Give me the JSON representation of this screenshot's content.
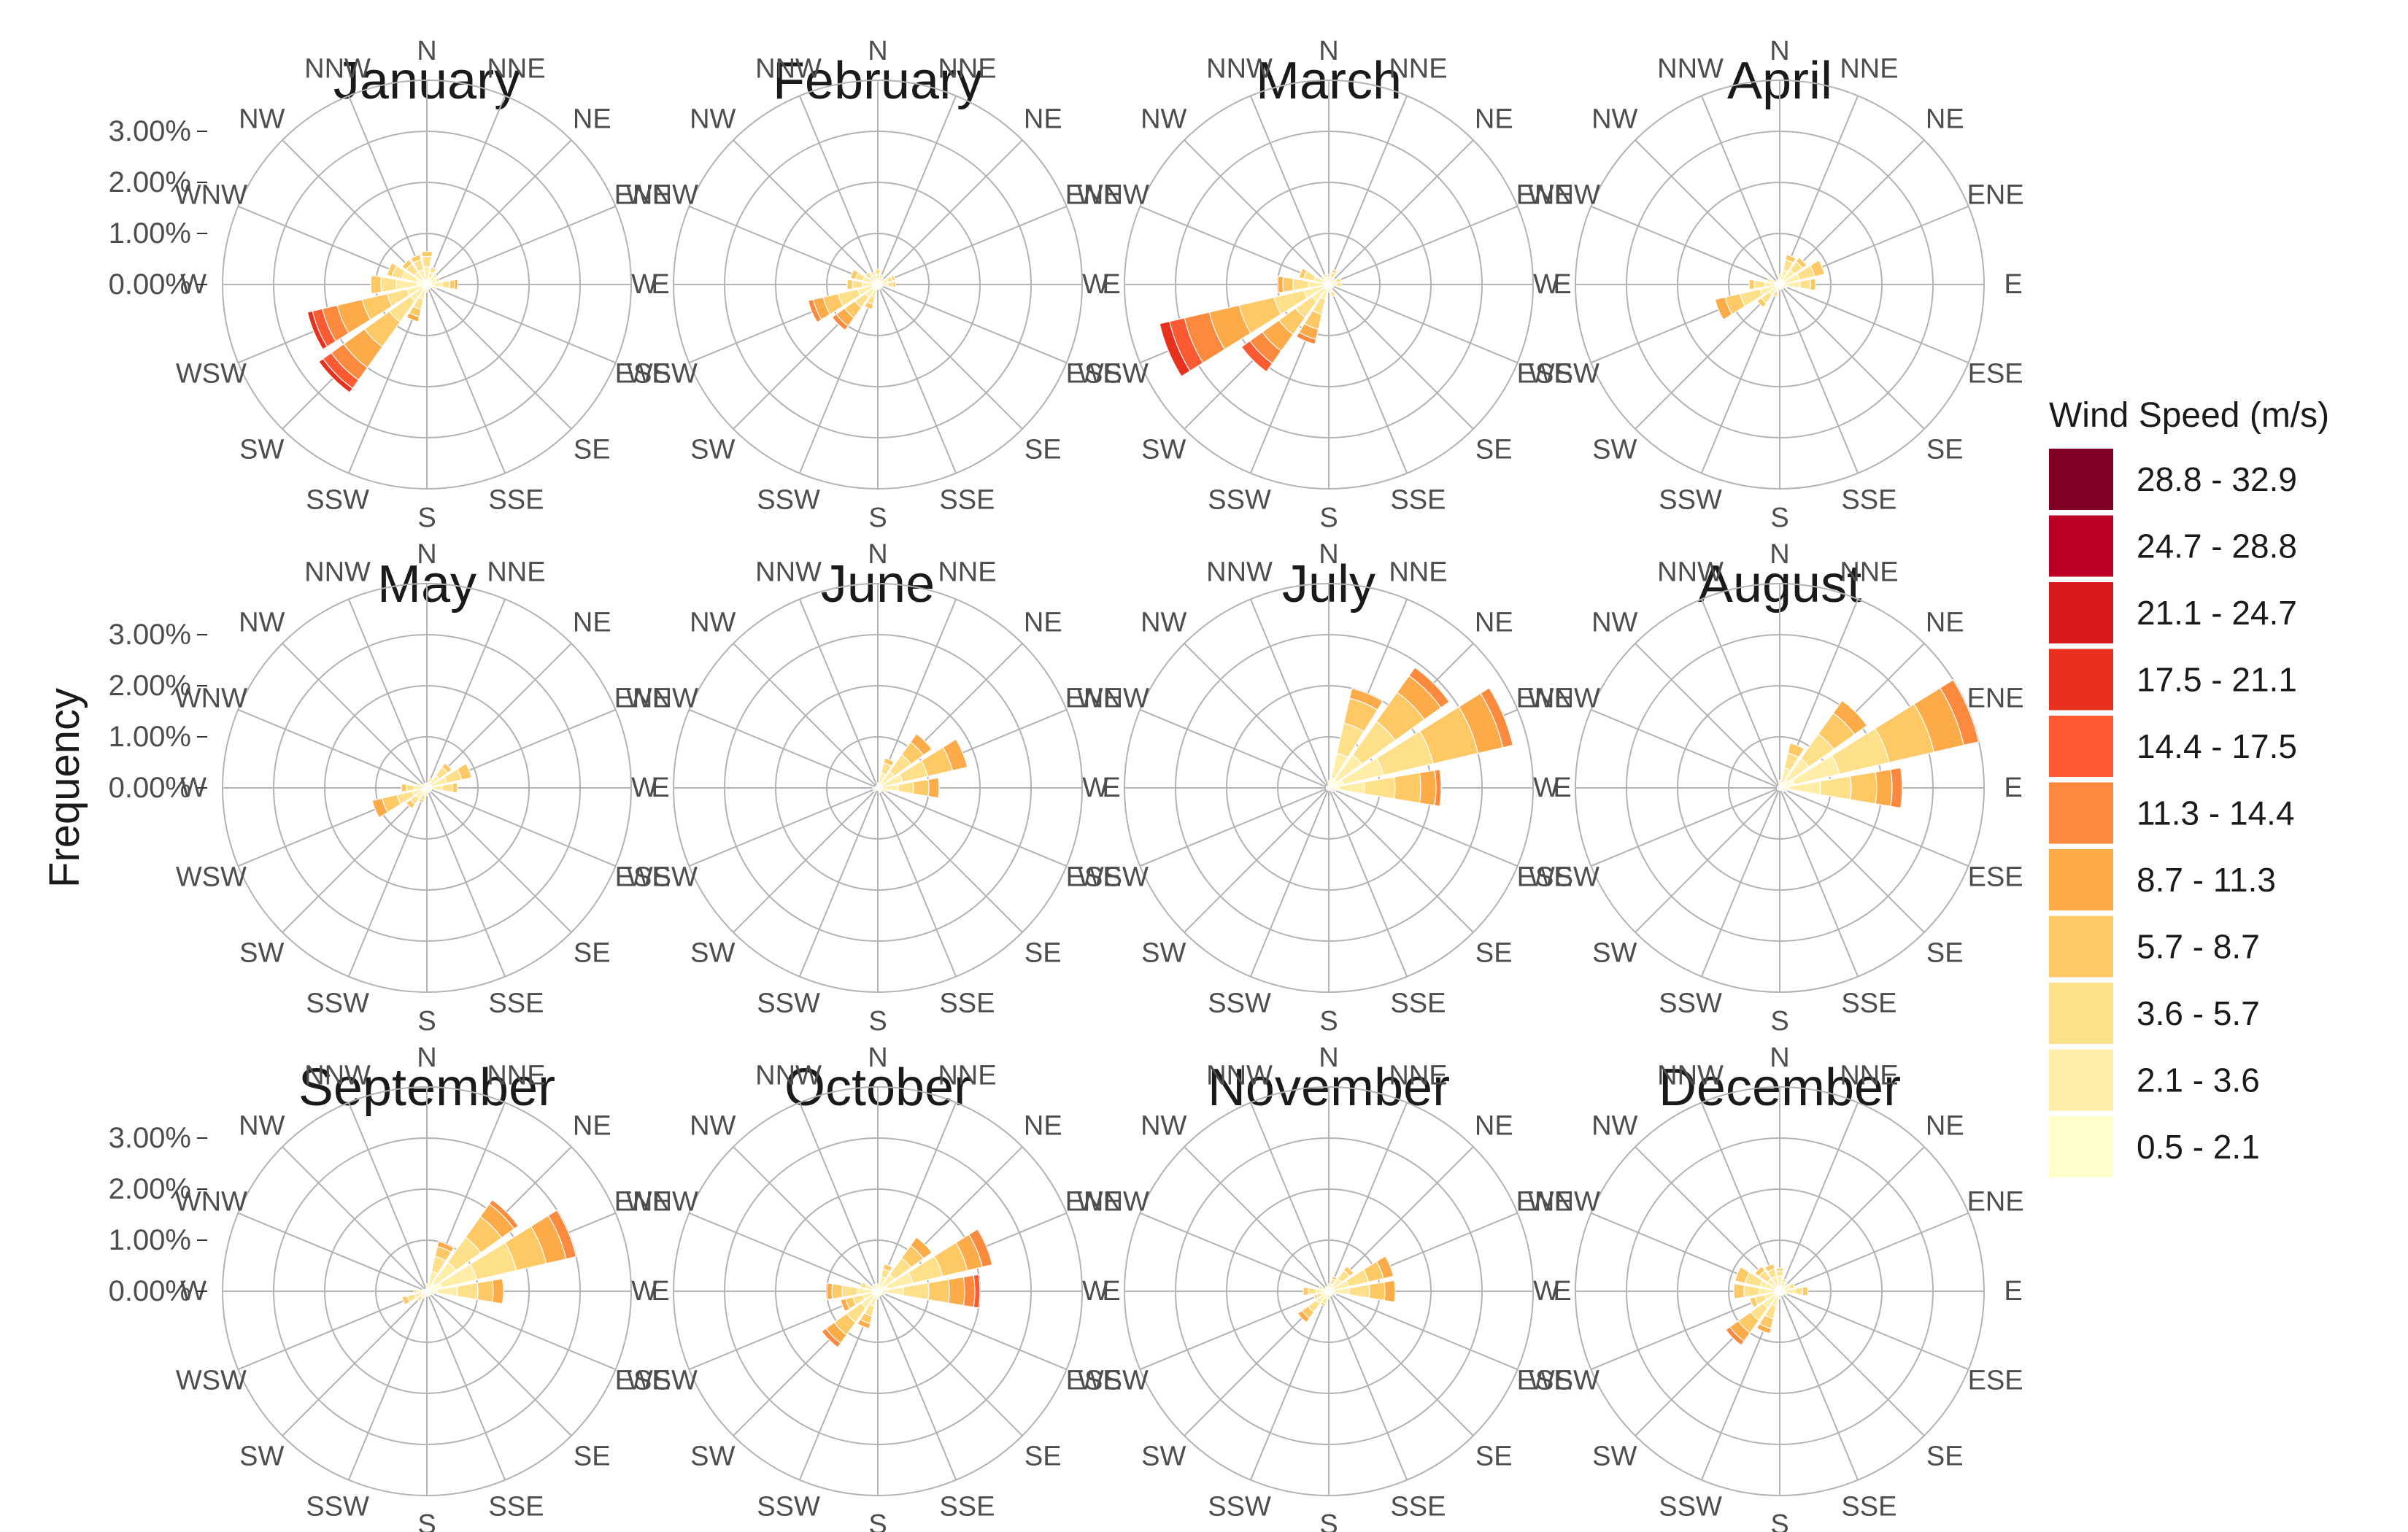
{
  "chart_data": {
    "type": "wind-rose",
    "ylabel": "Frequency",
    "r_ticks": [
      "0.00%",
      "1.00%",
      "2.00%",
      "3.00%"
    ],
    "r_tick_values": [
      0,
      1,
      2,
      3
    ],
    "r_max": 4,
    "grid": true,
    "directions": [
      "N",
      "NNE",
      "NE",
      "ENE",
      "E",
      "ESE",
      "SE",
      "SSE",
      "S",
      "SSW",
      "SW",
      "WSW",
      "W",
      "WNW",
      "NW",
      "NNW"
    ],
    "legend": {
      "title": "Wind Speed (m/s)",
      "position": "right",
      "bins": [
        {
          "label": "28.8 - 32.9",
          "color": "#800026"
        },
        {
          "label": "24.7 - 28.8",
          "color": "#BD0026"
        },
        {
          "label": "21.1 - 24.7",
          "color": "#D7191C"
        },
        {
          "label": "17.5 - 21.1",
          "color": "#E7301E"
        },
        {
          "label": "14.4 - 17.5",
          "color": "#FC5A32"
        },
        {
          "label": "11.3 - 14.4",
          "color": "#FC8A3E"
        },
        {
          "label": "8.7 - 11.3",
          "color": "#FDAA49"
        },
        {
          "label": "5.7 - 8.7",
          "color": "#FEC865"
        },
        {
          "label": "3.6 - 5.7",
          "color": "#FEE08B"
        },
        {
          "label": "2.1 - 3.6",
          "color": "#FFEDA8"
        },
        {
          "label": "0.5 - 2.1",
          "color": "#FFFFCC"
        }
      ]
    },
    "bin_order_note": "each sector value is an array of cumulative-contribution percentages from lowest speed bin (0.5 - 2.1) upward",
    "panels": [
      {
        "title": "January",
        "sectors": {
          "N": [
            0.1,
            0.25,
            0.2,
            0.1
          ],
          "NNE": [
            0.1,
            0.15,
            0.1
          ],
          "NE": [
            0.1,
            0.1,
            0.05
          ],
          "ENE": [
            0.1,
            0.1,
            0.05
          ],
          "E": [
            0.1,
            0.2,
            0.15,
            0.1,
            0.05
          ],
          "ESE": [
            0.1,
            0.1
          ],
          "SE": [
            0.05,
            0.05
          ],
          "SSE": [
            0.05,
            0.05
          ],
          "S": [
            0.05,
            0.1
          ],
          "SSW": [
            0.1,
            0.2,
            0.2,
            0.15,
            0.1
          ],
          "SW": [
            0.1,
            0.3,
            0.5,
            0.6,
            0.5,
            0.3,
            0.2,
            0.1
          ],
          "WSW": [
            0.1,
            0.3,
            0.4,
            0.5,
            0.5,
            0.3,
            0.2,
            0.1
          ],
          "W": [
            0.2,
            0.4,
            0.3,
            0.2
          ],
          "WNW": [
            0.2,
            0.3,
            0.2,
            0.1
          ],
          "NW": [
            0.1,
            0.2,
            0.2,
            0.1
          ],
          "NNW": [
            0.1,
            0.2,
            0.2,
            0.1
          ]
        }
      },
      {
        "title": "February",
        "sectors": {
          "N": [
            0.1,
            0.1,
            0.1
          ],
          "NNE": [
            0.05,
            0.1,
            0.05
          ],
          "NE": [
            0.05,
            0.05,
            0.05
          ],
          "ENE": [
            0.1,
            0.1,
            0.1,
            0.05
          ],
          "E": [
            0.1,
            0.1,
            0.1,
            0.05
          ],
          "ESE": [
            0.05,
            0.05
          ],
          "SE": [
            0.05,
            0.05
          ],
          "SSE": [
            0.05,
            0.05
          ],
          "S": [
            0.05,
            0.05
          ],
          "SSW": [
            0.1,
            0.15,
            0.15,
            0.1
          ],
          "SW": [
            0.1,
            0.2,
            0.25,
            0.25,
            0.2,
            0.1
          ],
          "WSW": [
            0.1,
            0.3,
            0.4,
            0.3,
            0.2,
            0.1
          ],
          "W": [
            0.1,
            0.2,
            0.2,
            0.1
          ],
          "WNW": [
            0.1,
            0.2,
            0.15,
            0.1
          ],
          "NW": [
            0.1,
            0.1,
            0.1
          ],
          "NNW": [
            0.1,
            0.1,
            0.05
          ]
        }
      },
      {
        "title": "March",
        "sectors": {
          "N": [
            0.05,
            0.1,
            0.05
          ],
          "NNE": [
            0.05,
            0.1,
            0.1,
            0.05
          ],
          "NE": [
            0.05,
            0.1
          ],
          "ENE": [
            0.05,
            0.1,
            0.1
          ],
          "E": [
            0.05,
            0.1,
            0.1
          ],
          "ESE": [
            0.05,
            0.05
          ],
          "SE": [
            0.05,
            0.05
          ],
          "SSE": [
            0.05,
            0.1,
            0.1
          ],
          "S": [
            0.05,
            0.1
          ],
          "SSW": [
            0.1,
            0.2,
            0.3,
            0.3,
            0.2,
            0.1
          ],
          "SW": [
            0.1,
            0.3,
            0.4,
            0.4,
            0.4,
            0.3,
            0.2
          ],
          "WSW": [
            0.1,
            0.4,
            0.6,
            0.7,
            0.6,
            0.5,
            0.3,
            0.2
          ],
          "W": [
            0.1,
            0.3,
            0.3,
            0.2,
            0.1
          ],
          "WNW": [
            0.1,
            0.2,
            0.2,
            0.1
          ],
          "NW": [
            0.05,
            0.1,
            0.05
          ],
          "NNW": [
            0.05,
            0.1,
            0.05
          ]
        }
      },
      {
        "title": "April",
        "sectors": {
          "N": [
            0.05,
            0.1,
            0.05
          ],
          "NNE": [
            0.1,
            0.2,
            0.2,
            0.1
          ],
          "NE": [
            0.1,
            0.25,
            0.2,
            0.1
          ],
          "ENE": [
            0.1,
            0.3,
            0.3,
            0.2
          ],
          "E": [
            0.1,
            0.3,
            0.2,
            0.1
          ],
          "ESE": [
            0.05,
            0.1
          ],
          "SE": [
            0.05,
            0.05
          ],
          "SSE": [
            0.05,
            0.05
          ],
          "S": [
            0.05,
            0.05
          ],
          "SSW": [
            0.05,
            0.1,
            0.1
          ],
          "SW": [
            0.1,
            0.15,
            0.2,
            0.1
          ],
          "WSW": [
            0.1,
            0.3,
            0.4,
            0.3,
            0.2
          ],
          "W": [
            0.1,
            0.2,
            0.2,
            0.1
          ],
          "WNW": [
            0.1,
            0.1,
            0.05
          ],
          "NW": [
            0.05,
            0.05
          ],
          "NNW": [
            0.05,
            0.05
          ]
        }
      },
      {
        "title": "May",
        "sectors": {
          "N": [
            0.05,
            0.05
          ],
          "NNE": [
            0.05,
            0.1,
            0.05
          ],
          "NE": [
            0.1,
            0.2,
            0.2,
            0.1
          ],
          "ENE": [
            0.1,
            0.3,
            0.3,
            0.2
          ],
          "E": [
            0.1,
            0.2,
            0.2,
            0.1
          ],
          "ESE": [
            0.05,
            0.05
          ],
          "SE": [
            0.05,
            0.05
          ],
          "SSE": [
            0.05,
            0.05
          ],
          "S": [
            0.05,
            0.1
          ],
          "SSW": [
            0.05,
            0.1,
            0.1,
            0.05
          ],
          "SW": [
            0.1,
            0.15,
            0.15,
            0.1
          ],
          "WSW": [
            0.1,
            0.2,
            0.3,
            0.3,
            0.2
          ],
          "W": [
            0.1,
            0.15,
            0.15,
            0.1
          ],
          "WNW": [
            0.05,
            0.1,
            0.05
          ],
          "NW": [
            0.05,
            0.05
          ],
          "NNW": [
            0.05,
            0.05
          ]
        }
      },
      {
        "title": "June",
        "sectors": {
          "N": [
            0.05,
            0.05
          ],
          "NNE": [
            0.1,
            0.2,
            0.2,
            0.1
          ],
          "NE": [
            0.1,
            0.3,
            0.4,
            0.3,
            0.2
          ],
          "ENE": [
            0.1,
            0.4,
            0.5,
            0.5,
            0.3
          ],
          "E": [
            0.1,
            0.3,
            0.3,
            0.3,
            0.2
          ],
          "ESE": [
            0.05,
            0.1,
            0.05
          ],
          "SE": [
            0.05,
            0.05
          ],
          "SSE": [
            0.05,
            0.05
          ],
          "S": [
            0.05
          ],
          "SSW": [
            0.05
          ],
          "SW": [
            0.05,
            0.05
          ],
          "WSW": [
            0.05,
            0.05
          ],
          "W": [
            0.05,
            0.05
          ],
          "WNW": [
            0.05
          ],
          "NW": [
            0.05
          ],
          "NNW": [
            0.05
          ]
        }
      },
      {
        "title": "July",
        "sectors": {
          "N": [
            0.05,
            0.1
          ],
          "NNE": [
            0.2,
            0.5,
            0.6,
            0.5,
            0.2
          ],
          "NE": [
            0.2,
            0.6,
            0.8,
            0.7,
            0.4,
            0.2
          ],
          "ENE": [
            0.3,
            0.8,
            1.0,
            0.9,
            0.5,
            0.2
          ],
          "E": [
            0.2,
            0.5,
            0.6,
            0.5,
            0.3,
            0.1
          ],
          "ESE": [
            0.05,
            0.1
          ],
          "SE": [
            0.05,
            0.05
          ],
          "SSE": [
            0.05
          ],
          "S": [
            0.05
          ],
          "SSW": [
            0.05
          ],
          "SW": [
            0.05
          ],
          "WSW": [
            0.05
          ],
          "W": [
            0.05
          ],
          "WNW": [
            0.05
          ],
          "NW": [
            0.05
          ],
          "NNW": [
            0.05
          ]
        }
      },
      {
        "title": "August",
        "sectors": {
          "N": [
            0.05,
            0.1
          ],
          "NNE": [
            0.1,
            0.3,
            0.3,
            0.2
          ],
          "NE": [
            0.2,
            0.5,
            0.6,
            0.5,
            0.3
          ],
          "ENE": [
            0.3,
            0.9,
            1.0,
            0.9,
            0.6,
            0.3
          ],
          "E": [
            0.2,
            0.6,
            0.6,
            0.5,
            0.3,
            0.2
          ],
          "ESE": [
            0.05,
            0.1
          ],
          "SE": [
            0.05,
            0.05
          ],
          "SSE": [
            0.05
          ],
          "S": [
            0.05
          ],
          "SSW": [
            0.05
          ],
          "SW": [
            0.05
          ],
          "WSW": [
            0.05
          ],
          "W": [
            0.05
          ],
          "WNW": [
            0.05
          ],
          "NW": [
            0.05
          ],
          "NNW": [
            0.05
          ]
        }
      },
      {
        "title": "September",
        "sectors": {
          "N": [
            0.05,
            0.1
          ],
          "NNE": [
            0.1,
            0.3,
            0.3,
            0.2,
            0.1
          ],
          "NE": [
            0.2,
            0.5,
            0.6,
            0.5,
            0.3,
            0.1
          ],
          "ENE": [
            0.3,
            0.7,
            0.8,
            0.6,
            0.4,
            0.2
          ],
          "E": [
            0.2,
            0.4,
            0.4,
            0.3,
            0.2
          ],
          "ESE": [
            0.05,
            0.1
          ],
          "SE": [
            0.05,
            0.05
          ],
          "SSE": [
            0.05,
            0.05
          ],
          "S": [
            0.05,
            0.05
          ],
          "SSW": [
            0.05,
            0.1
          ],
          "SW": [
            0.05,
            0.1,
            0.1
          ],
          "WSW": [
            0.1,
            0.15,
            0.15,
            0.1
          ],
          "W": [
            0.1,
            0.1,
            0.05
          ],
          "WNW": [
            0.05,
            0.05
          ],
          "NW": [
            0.05
          ],
          "NNW": [
            0.05
          ]
        }
      },
      {
        "title": "October",
        "sectors": {
          "N": [
            0.05,
            0.1
          ],
          "NNE": [
            0.1,
            0.2,
            0.15,
            0.1
          ],
          "NE": [
            0.1,
            0.3,
            0.4,
            0.3,
            0.2
          ],
          "ENE": [
            0.2,
            0.5,
            0.6,
            0.5,
            0.3,
            0.2
          ],
          "E": [
            0.1,
            0.4,
            0.5,
            0.4,
            0.3,
            0.2,
            0.1
          ],
          "ESE": [
            0.05,
            0.1
          ],
          "SE": [
            0.05,
            0.05
          ],
          "SSE": [
            0.05,
            0.05
          ],
          "S": [
            0.05,
            0.1
          ],
          "SSW": [
            0.1,
            0.2,
            0.2,
            0.15,
            0.1
          ],
          "SW": [
            0.1,
            0.3,
            0.35,
            0.3,
            0.2,
            0.1
          ],
          "WSW": [
            0.1,
            0.2,
            0.2,
            0.15,
            0.1
          ],
          "W": [
            0.1,
            0.3,
            0.3,
            0.2,
            0.1
          ],
          "WNW": [
            0.1,
            0.15,
            0.1
          ],
          "NW": [
            0.05,
            0.1
          ],
          "NNW": [
            0.05,
            0.1
          ]
        }
      },
      {
        "title": "November",
        "sectors": {
          "N": [
            0.05,
            0.1
          ],
          "NNE": [
            0.05,
            0.1,
            0.1,
            0.05
          ],
          "NE": [
            0.1,
            0.2,
            0.2,
            0.1
          ],
          "ENE": [
            0.1,
            0.3,
            0.4,
            0.3,
            0.2
          ],
          "E": [
            0.1,
            0.3,
            0.4,
            0.3,
            0.2
          ],
          "ESE": [
            0.05,
            0.1
          ],
          "SE": [
            0.05,
            0.05
          ],
          "SSE": [
            0.05,
            0.05
          ],
          "S": [
            0.05,
            0.1
          ],
          "SSW": [
            0.05,
            0.1,
            0.1,
            0.05
          ],
          "SW": [
            0.1,
            0.2,
            0.2,
            0.15,
            0.1
          ],
          "WSW": [
            0.05,
            0.1,
            0.1,
            0.05
          ],
          "W": [
            0.1,
            0.15,
            0.15,
            0.1
          ],
          "WNW": [
            0.05,
            0.1,
            0.05
          ],
          "NW": [
            0.05,
            0.05
          ],
          "NNW": [
            0.05,
            0.05
          ]
        }
      },
      {
        "title": "December",
        "sectors": {
          "N": [
            0.1,
            0.2,
            0.1,
            0.05
          ],
          "NNE": [
            0.1,
            0.1,
            0.05
          ],
          "NE": [
            0.05,
            0.1,
            0.05
          ],
          "ENE": [
            0.1,
            0.1,
            0.1
          ],
          "E": [
            0.1,
            0.2,
            0.15,
            0.1
          ],
          "ESE": [
            0.05,
            0.1
          ],
          "SE": [
            0.05,
            0.05
          ],
          "SSE": [
            0.05,
            0.05
          ],
          "S": [
            0.05,
            0.1
          ],
          "SSW": [
            0.1,
            0.2,
            0.25,
            0.2,
            0.1
          ],
          "SW": [
            0.1,
            0.3,
            0.3,
            0.3,
            0.2,
            0.1
          ],
          "WSW": [
            0.1,
            0.2,
            0.2,
            0.1
          ],
          "W": [
            0.1,
            0.3,
            0.3,
            0.2
          ],
          "WNW": [
            0.1,
            0.3,
            0.3,
            0.2
          ],
          "NW": [
            0.1,
            0.2,
            0.2,
            0.1
          ],
          "NNW": [
            0.1,
            0.2,
            0.15,
            0.1
          ]
        }
      }
    ]
  }
}
